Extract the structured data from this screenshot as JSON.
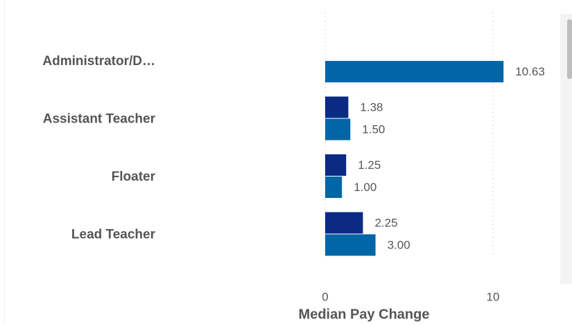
{
  "chart_data": {
    "type": "hbar",
    "categories": [
      "Administrator/D…",
      "Assistant Teacher",
      "Floater",
      "Lead Teacher"
    ],
    "series": [
      {
        "color": "#0a2a84",
        "values": [
          null,
          1.38,
          1.25,
          2.25
        ],
        "value_labels": [
          null,
          "1.38",
          "1.25",
          "2.25"
        ]
      },
      {
        "color": "#0066a6",
        "values": [
          10.63,
          1.5,
          1.0,
          3.0
        ],
        "value_labels": [
          "10.63",
          "1.50",
          "1.00",
          "3.00"
        ]
      }
    ],
    "xlim": [
      0,
      14
    ],
    "xticks": [
      0,
      10
    ],
    "grid": true,
    "x_label": "Median Pay Change"
  }
}
